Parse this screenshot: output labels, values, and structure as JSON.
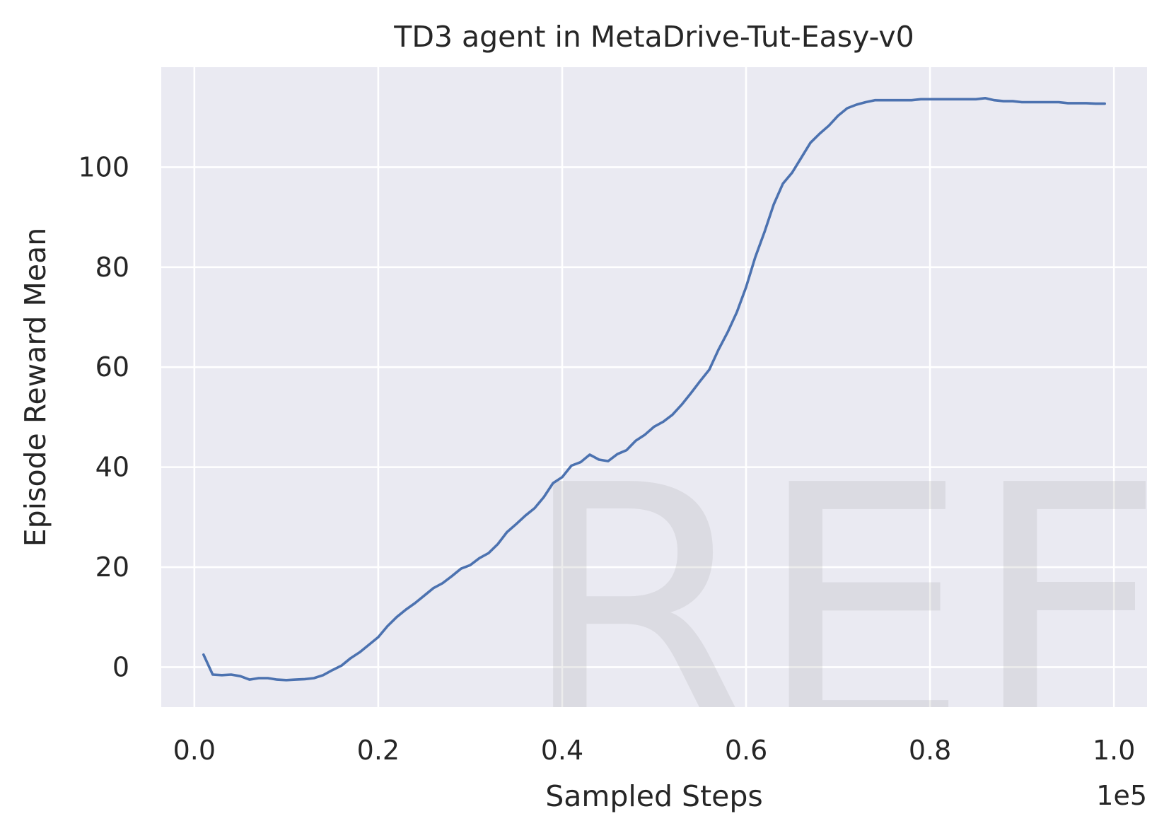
{
  "chart_data": {
    "type": "line",
    "title": "TD3 agent in MetaDrive-Tut-Easy-v0",
    "xlabel": "Sampled Steps",
    "ylabel": "Episode Reward Mean",
    "x_exponent_label": "1e5",
    "x_scale_note": "x values are in units of 1e5 sampled steps",
    "xlim": [
      -0.036,
      1.036
    ],
    "ylim": [
      -8,
      120
    ],
    "x_ticks": [
      0.0,
      0.2,
      0.4,
      0.6,
      0.8,
      1.0
    ],
    "x_tick_labels": [
      "0.0",
      "0.2",
      "0.4",
      "0.6",
      "0.8",
      "1.0"
    ],
    "y_ticks": [
      0,
      20,
      40,
      60,
      80,
      100
    ],
    "y_tick_labels": [
      "0",
      "20",
      "40",
      "60",
      "80",
      "100"
    ],
    "grid": true,
    "watermark": "REF",
    "colors": {
      "background": "#eaeaf2",
      "grid": "#ffffff",
      "line": "#4c72b0"
    },
    "series": [
      {
        "x": [
          0.01,
          0.02,
          0.03,
          0.04,
          0.05,
          0.06,
          0.07,
          0.08,
          0.09,
          0.1,
          0.11,
          0.12,
          0.13,
          0.14,
          0.15,
          0.16,
          0.17,
          0.18,
          0.19,
          0.2,
          0.21,
          0.22,
          0.23,
          0.24,
          0.25,
          0.26,
          0.27,
          0.28,
          0.29,
          0.3,
          0.31,
          0.32,
          0.33,
          0.34,
          0.35,
          0.36,
          0.37,
          0.38,
          0.39,
          0.4,
          0.41,
          0.42,
          0.43,
          0.44,
          0.45,
          0.46,
          0.47,
          0.48,
          0.49,
          0.5,
          0.51,
          0.52,
          0.53,
          0.54,
          0.55,
          0.56,
          0.57,
          0.58,
          0.59,
          0.6,
          0.61,
          0.62,
          0.63,
          0.64,
          0.65,
          0.66,
          0.67,
          0.68,
          0.69,
          0.7,
          0.71,
          0.72,
          0.73,
          0.74,
          0.75,
          0.76,
          0.77,
          0.78,
          0.79,
          0.8,
          0.81,
          0.82,
          0.83,
          0.84,
          0.85,
          0.86,
          0.87,
          0.88,
          0.89,
          0.9,
          0.91,
          0.92,
          0.93,
          0.94,
          0.95,
          0.96,
          0.97,
          0.98,
          0.99
        ],
        "y": [
          2.5,
          -1.5,
          -1.6,
          -1.5,
          -1.8,
          -2.5,
          -2.2,
          -2.2,
          -2.5,
          -2.6,
          -2.5,
          -2.4,
          -2.2,
          -1.6,
          -0.6,
          0.3,
          1.8,
          3.0,
          4.5,
          6.0,
          8.2,
          10.0,
          11.5,
          12.8,
          14.3,
          15.8,
          16.8,
          18.2,
          19.7,
          20.4,
          21.8,
          22.8,
          24.6,
          27.0,
          28.6,
          30.3,
          31.8,
          34.0,
          36.8,
          38.0,
          40.3,
          41.0,
          42.5,
          41.5,
          41.2,
          42.6,
          43.4,
          45.3,
          46.5,
          48.1,
          49.1,
          50.5,
          52.5,
          54.8,
          57.2,
          59.5,
          63.5,
          67.0,
          71.0,
          76.0,
          82.0,
          87.0,
          92.5,
          96.7,
          98.9,
          101.9,
          104.9,
          106.7,
          108.3,
          110.3,
          111.8,
          112.5,
          113.0,
          113.4,
          113.4,
          113.4,
          113.4,
          113.4,
          113.6,
          113.6,
          113.6,
          113.6,
          113.6,
          113.6,
          113.6,
          113.8,
          113.4,
          113.2,
          113.2,
          113.0,
          113.0,
          113.0,
          113.0,
          113.0,
          112.8,
          112.8,
          112.8,
          112.7,
          112.7
        ]
      }
    ]
  }
}
